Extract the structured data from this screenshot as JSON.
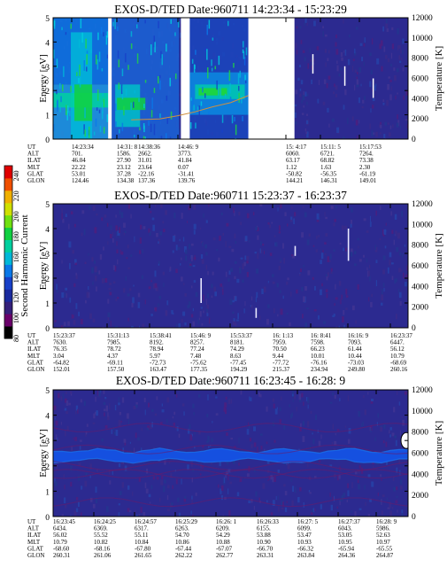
{
  "colorbar": {
    "label": "Second Harmonic Current",
    "ticks": [
      "80",
      "100",
      "120",
      "140",
      "160",
      "180",
      "200",
      "220",
      "240"
    ],
    "range": [
      80,
      250
    ],
    "colors": [
      "#000000",
      "#6a006a",
      "#34207a",
      "#1a2a9e",
      "#1840c8",
      "#0a78e8",
      "#00b8d8",
      "#00d0a0",
      "#10d040",
      "#70e010",
      "#d0e000",
      "#f0b000",
      "#f05000",
      "#e00000"
    ]
  },
  "chart_data": [
    {
      "type": "heatmap",
      "title": "EXOS-D/TED   Date:960711   14:23:34 - 15:23:29",
      "ylabel": "Energy [eV]",
      "y2label": "Temperature [K]",
      "ylim": [
        0,
        5
      ],
      "y2lim": [
        0,
        12000
      ],
      "yticks": [
        "0",
        "1",
        "2",
        "3",
        "4",
        "5"
      ],
      "y2ticks": [
        "0",
        "2000",
        "4000",
        "6000",
        "8000",
        "10000",
        "12000"
      ],
      "background": "#2c2a90",
      "data_gaps": [
        [
          0.36,
          0.385
        ],
        [
          0.55,
          0.68
        ]
      ],
      "temperature_trace": {
        "x": [
          0.22,
          0.3,
          0.35,
          0.4,
          0.45,
          0.5,
          0.55
        ],
        "y": [
          1900,
          2000,
          2300,
          2700,
          3200,
          3600,
          4300
        ]
      },
      "ephemeris": {
        "labels": [
          "UT",
          "ALT",
          "ILAT",
          "MLT",
          "GLAT",
          "GLON"
        ],
        "columns": [
          [
            "14:23:34",
            "701.",
            "46.04",
            "22.22",
            "53.01",
            "124.46"
          ],
          [
            "14:31: 8",
            "1586.",
            "27.90",
            "23.12",
            "37.28",
            "134.38"
          ],
          [
            "14:38:36",
            "2662.",
            "31.01",
            "23.64",
            "-22.16",
            "137.36"
          ],
          [
            "14:46: 9",
            "3773.",
            "41.84",
            "0.07",
            "-31.41",
            "139.76"
          ],
          [
            "",
            "",
            "",
            "",
            "",
            ""
          ],
          [
            "15: 4:17",
            "6060.",
            "63.17",
            "1.12",
            "-50.82",
            "144.21"
          ],
          [
            "15:11: 5",
            "6721.",
            "68.82",
            "1.63",
            "-56.35",
            "146.31"
          ],
          [
            "15:17:53",
            "7264.",
            "73.38",
            "2.30",
            "-61.19",
            "149.01"
          ]
        ]
      }
    },
    {
      "type": "heatmap",
      "title": "EXOS-D/TED   Date:960711   15:23:37 - 16:23:37",
      "ylabel": "Energy [eV]",
      "y2label": "Temperature [K]",
      "ylim": [
        0,
        5
      ],
      "y2lim": [
        0,
        12000
      ],
      "yticks": [
        "0",
        "1",
        "2",
        "3",
        "4",
        "5"
      ],
      "y2ticks": [
        "0",
        "2000",
        "4000",
        "6000",
        "8000",
        "10000",
        "12000"
      ],
      "background": "#2c2a90",
      "data_gaps": [],
      "ephemeris": {
        "labels": [
          "UT",
          "ALT",
          "ILAT",
          "MLT",
          "GLAT",
          "GLON"
        ],
        "columns": [
          [
            "15:23:37",
            "7630.",
            "76.35",
            "3.04",
            "-64.82",
            "152.01"
          ],
          [
            "15:31:13",
            "7985.",
            "78.72",
            "4.37",
            "-69.11",
            "157.50"
          ],
          [
            "15:38:41",
            "8192.",
            "78.94",
            "5.97",
            "-72.73",
            "163.47"
          ],
          [
            "15:46: 9",
            "8257.",
            "77.24",
            "7.48",
            "-75.62",
            "177.35"
          ],
          [
            "15:53:37",
            "8181.",
            "74.29",
            "8.63",
            "-77.45",
            "194.29"
          ],
          [
            "16: 1:13",
            "7959.",
            "70.50",
            "9.44",
            "-77.72",
            "215.37"
          ],
          [
            "16: 8:41",
            "7598.",
            "66.23",
            "10.01",
            "-76.16",
            "234.94"
          ],
          [
            "16:16: 9",
            "7093.",
            "61.44",
            "10.44",
            "-73.03",
            "249.80"
          ],
          [
            "16:23:37",
            "6447.",
            "56.12",
            "10.79",
            "-68.69",
            "260.16"
          ]
        ]
      }
    },
    {
      "type": "heatmap",
      "title": "EXOS-D/TED   Date:960711   16:23:45 - 16:28: 9",
      "ylabel": "Energy [eV]",
      "y2label": "Temperature [K]",
      "ylim": [
        0,
        5
      ],
      "y2lim": [
        0,
        12000
      ],
      "yticks": [
        "0",
        "1",
        "2",
        "3",
        "4",
        "5"
      ],
      "y2ticks": [
        "0",
        "2000",
        "4000",
        "6000",
        "8000",
        "10000",
        "12000"
      ],
      "background": "#2c2a90",
      "band_energy_ev": [
        2.2,
        2.6
      ],
      "ephemeris": {
        "labels": [
          "UT",
          "ALT",
          "ILAT",
          "MLT",
          "GLAT",
          "GLON"
        ],
        "columns": [
          [
            "16:23:45",
            "6434.",
            "56.02",
            "10.79",
            "-68.60",
            "260.31"
          ],
          [
            "16:24:25",
            "6369.",
            "55.52",
            "10.82",
            "-68.16",
            "261.06"
          ],
          [
            "16:24:57",
            "6317.",
            "55.11",
            "10.84",
            "-67.80",
            "261.65"
          ],
          [
            "16:25:29",
            "6263.",
            "54.70",
            "10.86",
            "-67.44",
            "262.22"
          ],
          [
            "16:26: 1",
            "6209.",
            "54.29",
            "10.88",
            "-67.07",
            "262.77"
          ],
          [
            "16:26:33",
            "6155.",
            "53.88",
            "10.90",
            "-66.70",
            "263.31"
          ],
          [
            "16:27: 5",
            "6099.",
            "53.47",
            "10.93",
            "-66.32",
            "263.84"
          ],
          [
            "16:27:37",
            "6043.",
            "53.05",
            "10.95",
            "-65.94",
            "264.36"
          ],
          [
            "16:28: 9",
            "5986.",
            "52.63",
            "10.97",
            "-65.55",
            "264.87"
          ]
        ]
      }
    }
  ]
}
